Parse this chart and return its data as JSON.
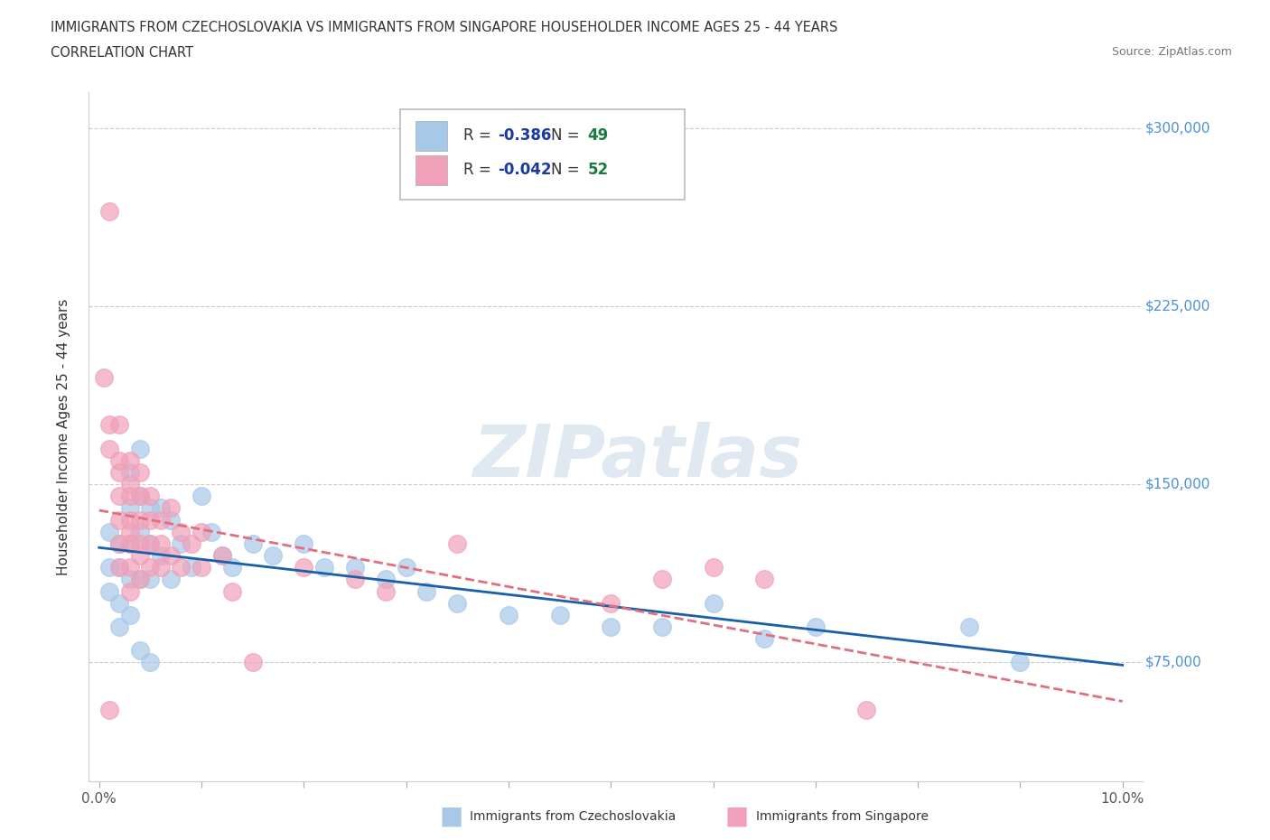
{
  "title_line1": "IMMIGRANTS FROM CZECHOSLOVAKIA VS IMMIGRANTS FROM SINGAPORE HOUSEHOLDER INCOME AGES 25 - 44 YEARS",
  "title_line2": "CORRELATION CHART",
  "source_text": "Source: ZipAtlas.com",
  "ylabel": "Householder Income Ages 25 - 44 years",
  "xlim": [
    -0.001,
    0.102
  ],
  "ylim": [
    25000,
    315000
  ],
  "yticks": [
    75000,
    150000,
    225000,
    300000
  ],
  "ytick_labels": [
    "$75,000",
    "$150,000",
    "$225,000",
    "$300,000"
  ],
  "xticks": [
    0.0,
    0.01,
    0.02,
    0.03,
    0.04,
    0.05,
    0.06,
    0.07,
    0.08,
    0.09,
    0.1
  ],
  "xtick_labels": [
    "0.0%",
    "",
    "",
    "",
    "",
    "",
    "",
    "",
    "",
    "",
    "10.0%"
  ],
  "czech_color": "#a8c8e8",
  "singapore_color": "#f0a0b8",
  "czech_trend_color": "#1a5fa8",
  "singapore_trend_color": "#e07080",
  "czech_R": -0.386,
  "czech_N": 49,
  "singapore_R": -0.042,
  "singapore_N": 52,
  "legend_R_color": "#1a3a9f",
  "legend_N_color": "#1a7a3f",
  "watermark": "ZIPatlas",
  "background_color": "#ffffff",
  "grid_color": "#cccccc",
  "ytick_color": "#4a90d9",
  "czech_x": [
    0.001,
    0.001,
    0.001,
    0.002,
    0.002,
    0.002,
    0.002,
    0.003,
    0.003,
    0.003,
    0.003,
    0.003,
    0.004,
    0.004,
    0.004,
    0.004,
    0.004,
    0.005,
    0.005,
    0.005,
    0.005,
    0.006,
    0.006,
    0.007,
    0.007,
    0.008,
    0.009,
    0.01,
    0.011,
    0.012,
    0.013,
    0.015,
    0.017,
    0.02,
    0.022,
    0.025,
    0.028,
    0.03,
    0.032,
    0.035,
    0.04,
    0.045,
    0.05,
    0.055,
    0.06,
    0.065,
    0.07,
    0.085,
    0.09
  ],
  "czech_y": [
    130000,
    115000,
    105000,
    125000,
    115000,
    100000,
    90000,
    155000,
    140000,
    125000,
    110000,
    95000,
    165000,
    145000,
    130000,
    110000,
    80000,
    140000,
    125000,
    110000,
    75000,
    140000,
    120000,
    135000,
    110000,
    125000,
    115000,
    145000,
    130000,
    120000,
    115000,
    125000,
    120000,
    125000,
    115000,
    115000,
    110000,
    115000,
    105000,
    100000,
    95000,
    95000,
    90000,
    90000,
    100000,
    85000,
    90000,
    90000,
    75000
  ],
  "singapore_x": [
    0.0005,
    0.001,
    0.001,
    0.001,
    0.001,
    0.002,
    0.002,
    0.002,
    0.002,
    0.002,
    0.002,
    0.002,
    0.003,
    0.003,
    0.003,
    0.003,
    0.003,
    0.003,
    0.003,
    0.003,
    0.004,
    0.004,
    0.004,
    0.004,
    0.004,
    0.004,
    0.005,
    0.005,
    0.005,
    0.005,
    0.006,
    0.006,
    0.006,
    0.007,
    0.007,
    0.008,
    0.008,
    0.009,
    0.01,
    0.01,
    0.012,
    0.013,
    0.015,
    0.02,
    0.025,
    0.028,
    0.035,
    0.05,
    0.055,
    0.06,
    0.065,
    0.075
  ],
  "singapore_y": [
    195000,
    265000,
    175000,
    165000,
    55000,
    175000,
    160000,
    155000,
    145000,
    135000,
    125000,
    115000,
    160000,
    150000,
    145000,
    135000,
    130000,
    125000,
    115000,
    105000,
    155000,
    145000,
    135000,
    125000,
    120000,
    110000,
    145000,
    135000,
    125000,
    115000,
    135000,
    125000,
    115000,
    140000,
    120000,
    130000,
    115000,
    125000,
    130000,
    115000,
    120000,
    105000,
    75000,
    115000,
    110000,
    105000,
    125000,
    100000,
    110000,
    115000,
    110000,
    55000
  ]
}
